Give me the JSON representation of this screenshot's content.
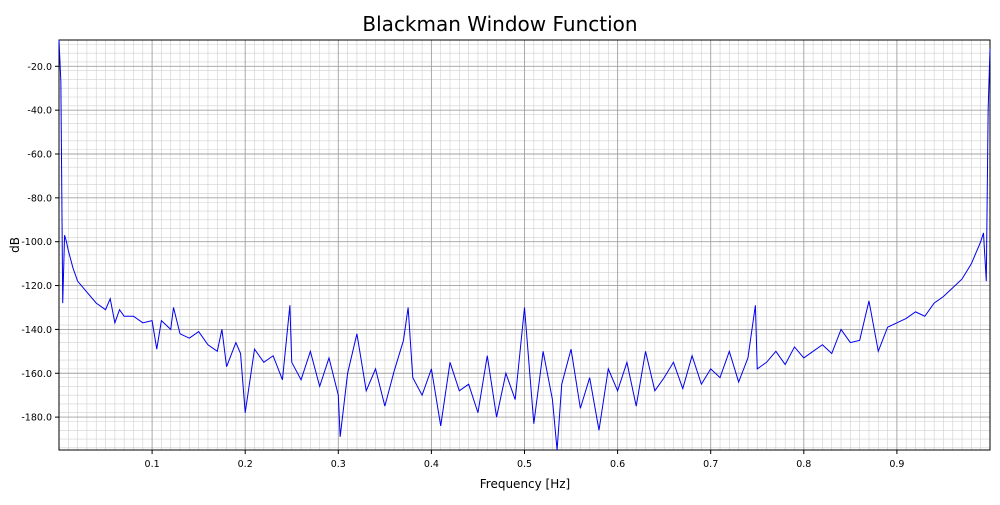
{
  "chart_data": {
    "type": "line",
    "title": "Blackman Window Function",
    "xlabel": "Frequency [Hz]",
    "ylabel": "dB",
    "xlim": [
      0.0,
      1.0
    ],
    "ylim": [
      -195.0,
      -8.0
    ],
    "x_ticks": [
      0.1,
      0.2,
      0.3,
      0.4,
      0.5,
      0.6,
      0.7,
      0.8,
      0.9
    ],
    "x_tick_labels": [
      "0.1",
      "0.2",
      "0.3",
      "0.4",
      "0.5",
      "0.6",
      "0.7",
      "0.8",
      "0.9"
    ],
    "y_ticks": [
      -20.0,
      -40.0,
      -60.0,
      -80.0,
      -100.0,
      -120.0,
      -140.0,
      -160.0,
      -180.0
    ],
    "y_tick_labels": [
      "-20.0",
      "-40.0",
      "-60.0",
      "-80.0",
      "-100.0",
      "-120.0",
      "-140.0",
      "-160.0",
      "-180.0"
    ],
    "grid": true,
    "minor_grid": true,
    "legend": "none",
    "series": [
      {
        "color": "#0000ee",
        "x": [
          0.0,
          0.002,
          0.004,
          0.006,
          0.008,
          0.01,
          0.015,
          0.02,
          0.03,
          0.04,
          0.05,
          0.055,
          0.06,
          0.065,
          0.07,
          0.08,
          0.09,
          0.1,
          0.105,
          0.11,
          0.12,
          0.123,
          0.13,
          0.14,
          0.15,
          0.16,
          0.17,
          0.175,
          0.18,
          0.19,
          0.195,
          0.2,
          0.21,
          0.22,
          0.23,
          0.24,
          0.248,
          0.25,
          0.26,
          0.27,
          0.28,
          0.29,
          0.3,
          0.302,
          0.31,
          0.32,
          0.33,
          0.34,
          0.35,
          0.36,
          0.37,
          0.375,
          0.38,
          0.39,
          0.4,
          0.41,
          0.42,
          0.43,
          0.44,
          0.45,
          0.46,
          0.47,
          0.48,
          0.49,
          0.5,
          0.51,
          0.52,
          0.53,
          0.535,
          0.54,
          0.55,
          0.56,
          0.57,
          0.58,
          0.59,
          0.6,
          0.61,
          0.62,
          0.63,
          0.64,
          0.65,
          0.66,
          0.67,
          0.68,
          0.69,
          0.7,
          0.71,
          0.72,
          0.73,
          0.74,
          0.748,
          0.75,
          0.76,
          0.77,
          0.78,
          0.79,
          0.8,
          0.81,
          0.82,
          0.83,
          0.84,
          0.85,
          0.86,
          0.87,
          0.88,
          0.89,
          0.9,
          0.91,
          0.92,
          0.93,
          0.94,
          0.95,
          0.96,
          0.97,
          0.98,
          0.99,
          0.993,
          0.996,
          0.998,
          1.0
        ],
        "y": [
          -8.0,
          -27.0,
          -128.0,
          -97.0,
          -100.0,
          -104.0,
          -112.0,
          -118.0,
          -123.0,
          -128.0,
          -131.0,
          -126.0,
          -137.0,
          -131.0,
          -134.0,
          -134.0,
          -137.0,
          -136.0,
          -149.0,
          -136.0,
          -140.0,
          -130.0,
          -142.0,
          -144.0,
          -141.0,
          -147.0,
          -150.0,
          -140.0,
          -157.0,
          -146.0,
          -151.0,
          -178.0,
          -149.0,
          -155.0,
          -152.0,
          -163.0,
          -129.0,
          -155.0,
          -163.0,
          -150.0,
          -166.0,
          -153.0,
          -170.0,
          -189.0,
          -160.0,
          -142.0,
          -168.0,
          -158.0,
          -175.0,
          -159.0,
          -145.0,
          -130.0,
          -162.0,
          -170.0,
          -158.0,
          -184.0,
          -155.0,
          -168.0,
          -165.0,
          -178.0,
          -152.0,
          -180.0,
          -160.0,
          -172.0,
          -130.0,
          -183.0,
          -150.0,
          -172.0,
          -195.0,
          -165.0,
          -149.0,
          -176.0,
          -162.0,
          -186.0,
          -158.0,
          -168.0,
          -155.0,
          -175.0,
          -150.0,
          -168.0,
          -162.0,
          -155.0,
          -167.0,
          -152.0,
          -165.0,
          -158.0,
          -162.0,
          -150.0,
          -164.0,
          -153.0,
          -129.0,
          -158.0,
          -155.0,
          -150.0,
          -156.0,
          -148.0,
          -153.0,
          -150.0,
          -147.0,
          -151.0,
          -140.0,
          -146.0,
          -145.0,
          -127.0,
          -150.0,
          -139.0,
          -137.0,
          -135.0,
          -132.0,
          -134.0,
          -128.0,
          -125.0,
          -121.0,
          -117.0,
          -110.0,
          -100.0,
          -96.0,
          -118.0,
          -40.0,
          -12.0
        ]
      }
    ]
  }
}
